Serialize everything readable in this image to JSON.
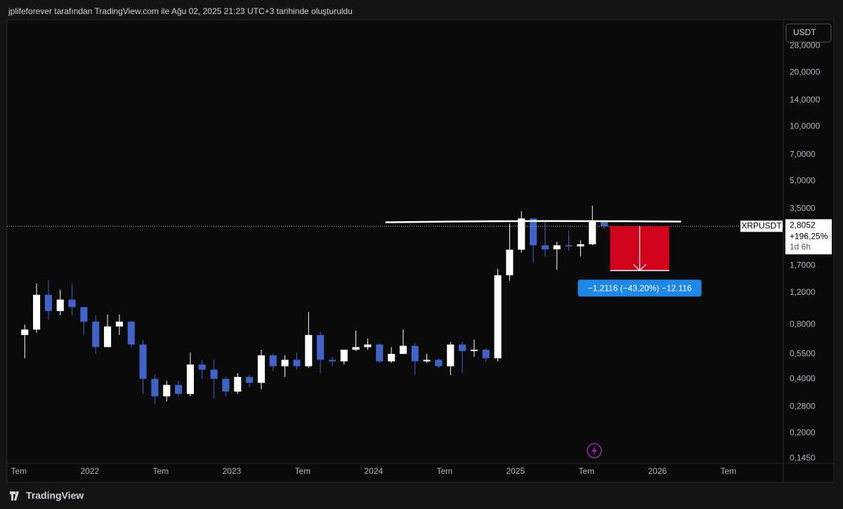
{
  "header": {
    "text": "jplifeforever tarafından TradingView.com ile Ağu 02, 2025 21:23 UTC+3 tarihinde oluşturuldu"
  },
  "footer": {
    "brand": "TradingView"
  },
  "chart_data": {
    "type": "candlestick",
    "currency": "USDT",
    "log_scale": true,
    "grid": false,
    "up_color": "#ffffff",
    "down_color": "#3f63c8",
    "x": [
      "2021-07",
      "2021-08",
      "2021-09",
      "2021-10",
      "2021-11",
      "2021-12",
      "2022-01",
      "2022-02",
      "2022-03",
      "2022-04",
      "2022-05",
      "2022-06",
      "2022-07",
      "2022-08",
      "2022-09",
      "2022-10",
      "2022-11",
      "2022-12",
      "2023-01",
      "2023-02",
      "2023-03",
      "2023-04",
      "2023-05",
      "2023-06",
      "2023-07",
      "2023-08",
      "2023-09",
      "2023-10",
      "2023-11",
      "2023-12",
      "2024-01",
      "2024-02",
      "2024-03",
      "2024-04",
      "2024-05",
      "2024-06",
      "2024-07",
      "2024-08",
      "2024-09",
      "2024-10",
      "2024-11",
      "2024-12",
      "2025-01",
      "2025-02",
      "2025-03",
      "2025-04",
      "2025-05",
      "2025-06",
      "2025-07",
      "2025-08"
    ],
    "series": [
      {
        "name": "XRPUSDT",
        "open": [
          0.7,
          0.75,
          1.17,
          0.95,
          1.1,
          1.0,
          0.83,
          0.6,
          0.78,
          0.83,
          0.62,
          0.4,
          0.32,
          0.37,
          0.33,
          0.48,
          0.45,
          0.4,
          0.34,
          0.41,
          0.38,
          0.54,
          0.47,
          0.51,
          0.47,
          0.7,
          0.51,
          0.5,
          0.58,
          0.6,
          0.62,
          0.5,
          0.55,
          0.61,
          0.5,
          0.51,
          0.47,
          0.62,
          0.57,
          0.58,
          0.52,
          1.5,
          2.08,
          3.1,
          2.2,
          2.09,
          2.2,
          2.17,
          2.23,
          3.0
        ],
        "high": [
          0.8,
          1.35,
          1.41,
          1.25,
          1.35,
          1.0,
          0.9,
          0.91,
          0.91,
          0.84,
          0.66,
          0.42,
          0.39,
          0.39,
          0.56,
          0.51,
          0.51,
          0.41,
          0.43,
          0.42,
          0.58,
          0.55,
          0.54,
          0.56,
          0.94,
          0.73,
          0.53,
          0.58,
          0.74,
          0.67,
          0.63,
          0.6,
          0.75,
          0.63,
          0.55,
          0.52,
          0.64,
          0.64,
          0.66,
          0.59,
          1.63,
          2.9,
          3.4,
          3.1,
          3.0,
          2.3,
          2.65,
          2.34,
          3.65,
          3.05
        ],
        "low": [
          0.52,
          0.72,
          0.85,
          0.9,
          0.9,
          0.7,
          0.55,
          0.6,
          0.7,
          0.6,
          0.33,
          0.29,
          0.3,
          0.32,
          0.32,
          0.4,
          0.31,
          0.32,
          0.33,
          0.36,
          0.35,
          0.44,
          0.41,
          0.45,
          0.46,
          0.43,
          0.47,
          0.48,
          0.57,
          0.58,
          0.49,
          0.49,
          0.55,
          0.42,
          0.49,
          0.46,
          0.42,
          0.43,
          0.53,
          0.5,
          0.5,
          1.4,
          2.0,
          1.77,
          1.9,
          1.61,
          2.05,
          1.91,
          2.2,
          2.72
        ],
        "close": [
          0.75,
          1.17,
          0.95,
          1.1,
          1.0,
          0.83,
          0.6,
          0.78,
          0.83,
          0.62,
          0.4,
          0.32,
          0.37,
          0.33,
          0.48,
          0.45,
          0.4,
          0.34,
          0.41,
          0.38,
          0.54,
          0.47,
          0.51,
          0.47,
          0.7,
          0.51,
          0.5,
          0.58,
          0.6,
          0.62,
          0.5,
          0.55,
          0.61,
          0.5,
          0.51,
          0.47,
          0.62,
          0.57,
          0.58,
          0.52,
          1.5,
          2.08,
          3.1,
          2.2,
          2.09,
          2.2,
          2.17,
          2.23,
          3.0,
          2.8052
        ]
      }
    ],
    "xlim": [
      "2021-06",
      "2026-12"
    ],
    "xticks": [
      {
        "value": "2021-07",
        "label": "Tem"
      },
      {
        "value": "2022-01",
        "label": "2022"
      },
      {
        "value": "2022-07",
        "label": "Tem"
      },
      {
        "value": "2023-01",
        "label": "2023"
      },
      {
        "value": "2023-07",
        "label": "Tem"
      },
      {
        "value": "2024-01",
        "label": "2024"
      },
      {
        "value": "2024-07",
        "label": "Tem"
      },
      {
        "value": "2025-01",
        "label": "2025"
      },
      {
        "value": "2025-07",
        "label": "Tem"
      },
      {
        "value": "2026-01",
        "label": "2026"
      },
      {
        "value": "2026-07",
        "label": "Tem"
      }
    ],
    "ylim": [
      0.136,
      38.5
    ],
    "yticks": [
      {
        "value": 0.145,
        "label": "0,1450"
      },
      {
        "value": 0.2,
        "label": "0,2000"
      },
      {
        "value": 0.28,
        "label": "0,2800"
      },
      {
        "value": 0.4,
        "label": "0,4000"
      },
      {
        "value": 0.55,
        "label": "0,5500"
      },
      {
        "value": 0.8,
        "label": "0,8000"
      },
      {
        "value": 1.2,
        "label": "1,2000"
      },
      {
        "value": 1.7,
        "label": "1,7000"
      },
      {
        "value": 3.5,
        "label": "3,5000"
      },
      {
        "value": 5,
        "label": "5,0000"
      },
      {
        "value": 7,
        "label": "7,0000"
      },
      {
        "value": 10,
        "label": "10,0000"
      },
      {
        "value": 14,
        "label": "14,0000"
      },
      {
        "value": 20,
        "label": "20,0000"
      },
      {
        "value": 28,
        "label": "28,0000"
      }
    ],
    "last_price": {
      "value": 2.8052,
      "label": "2,8052",
      "change_label": "+196,25%",
      "countdown": "1d 6h"
    },
    "resistance_line": {
      "value": 2.95,
      "x": [
        "2024-02",
        "2026-03"
      ]
    },
    "measure": {
      "from": 2.8052,
      "to": 1.5936,
      "x": [
        "2025-09",
        "2026-02"
      ],
      "label": "−1,2116 (−43,20%) −12.116"
    }
  }
}
